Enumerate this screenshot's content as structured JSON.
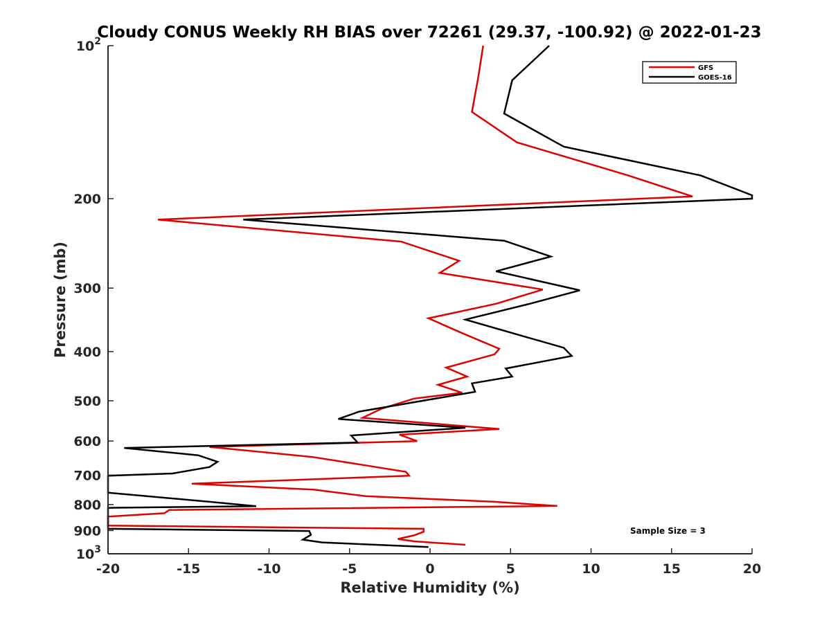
{
  "chart_data": {
    "type": "line",
    "title": "Cloudy CONUS Weekly RH BIAS over 72261 (29.37, -100.92) @ 2022-01-23",
    "xlabel": "Relative Humidity (%)",
    "ylabel": "Pressure (mb)",
    "xlim": [
      -20,
      20
    ],
    "ylim": [
      100,
      1000
    ],
    "yscale": "log",
    "y_reversed": true,
    "grid": false,
    "legend_position": "top-right",
    "xticks": [
      "-20",
      "-15",
      "-10",
      "-5",
      "0",
      "5",
      "10",
      "15",
      "20"
    ],
    "yticks": [
      {
        "label": "10",
        "exp": "2",
        "value": 100
      },
      {
        "label": "200",
        "exp": "",
        "value": 200
      },
      {
        "label": "300",
        "exp": "",
        "value": 300
      },
      {
        "label": "400",
        "exp": "",
        "value": 400
      },
      {
        "label": "500",
        "exp": "",
        "value": 500
      },
      {
        "label": "600",
        "exp": "",
        "value": 600
      },
      {
        "label": "700",
        "exp": "",
        "value": 700
      },
      {
        "label": "800",
        "exp": "",
        "value": 800
      },
      {
        "label": "900",
        "exp": "",
        "value": 900
      },
      {
        "label": "10",
        "exp": "3",
        "value": 1000
      }
    ],
    "annotation": "Sample Size = 3",
    "series": [
      {
        "name": "GFS",
        "color": "#e00000",
        "points": [
          [
            3.3,
            100
          ],
          [
            3.0,
            115
          ],
          [
            2.6,
            135
          ],
          [
            5.4,
            155
          ],
          [
            12.3,
            180
          ],
          [
            16.3,
            198
          ],
          [
            -16.9,
            220
          ],
          [
            -1.8,
            243
          ],
          [
            1.8,
            265
          ],
          [
            0.6,
            280
          ],
          [
            7.0,
            302
          ],
          [
            4.1,
            322
          ],
          [
            -0.1,
            344
          ],
          [
            2.0,
            368
          ],
          [
            4.3,
            395
          ],
          [
            4.0,
            405
          ],
          [
            1.0,
            430
          ],
          [
            2.3,
            448
          ],
          [
            0.5,
            465
          ],
          [
            2.0,
            482
          ],
          [
            -1.0,
            495
          ],
          [
            -3.0,
            518
          ],
          [
            -4.2,
            540
          ],
          [
            4.3,
            568
          ],
          [
            -1.9,
            583
          ],
          [
            -0.8,
            600
          ],
          [
            -13.7,
            616
          ],
          [
            -7.3,
            645
          ],
          [
            -4.0,
            670
          ],
          [
            -1.5,
            690
          ],
          [
            -1.3,
            702
          ],
          [
            -14.8,
            728
          ],
          [
            -7.2,
            748
          ],
          [
            -4.0,
            770
          ],
          [
            4.0,
            790
          ],
          [
            7.9,
            805
          ],
          [
            -16.2,
            820
          ],
          [
            -16.5,
            832
          ],
          [
            -20.0,
            845
          ],
          [
            -20.0,
            880
          ],
          [
            -0.4,
            893
          ],
          [
            -0.4,
            905
          ],
          [
            -1.0,
            920
          ],
          [
            -2.0,
            935
          ],
          [
            -1.0,
            945
          ],
          [
            2.2,
            960
          ]
        ]
      },
      {
        "name": "GOES-16",
        "color": "#000000",
        "points": [
          [
            7.4,
            100
          ],
          [
            5.1,
            117
          ],
          [
            4.6,
            136
          ],
          [
            8.3,
            158
          ],
          [
            16.8,
            180
          ],
          [
            20.0,
            197
          ],
          [
            20.0,
            200
          ],
          [
            -11.6,
            220
          ],
          [
            4.6,
            242
          ],
          [
            7.5,
            260
          ],
          [
            4.1,
            278
          ],
          [
            9.3,
            303
          ],
          [
            6.2,
            322
          ],
          [
            2.2,
            346
          ],
          [
            5.4,
            370
          ],
          [
            8.3,
            393
          ],
          [
            8.8,
            408
          ],
          [
            4.7,
            432
          ],
          [
            5.1,
            448
          ],
          [
            2.6,
            462
          ],
          [
            2.8,
            480
          ],
          [
            -4.4,
            525
          ],
          [
            -5.7,
            543
          ],
          [
            2.2,
            565
          ],
          [
            -4.9,
            585
          ],
          [
            -4.5,
            604
          ],
          [
            -19.0,
            619
          ],
          [
            -14.4,
            640
          ],
          [
            -13.2,
            659
          ],
          [
            -13.7,
            675
          ],
          [
            -16.0,
            695
          ],
          [
            -20.0,
            702
          ],
          [
            -20.0,
            758
          ],
          [
            -13.7,
            790
          ],
          [
            -10.8,
            806
          ],
          [
            -20.0,
            812
          ],
          [
            -20.0,
            893
          ],
          [
            -7.5,
            902
          ],
          [
            -7.4,
            918
          ],
          [
            -7.9,
            938
          ],
          [
            -6.7,
            950
          ],
          [
            -0.1,
            970
          ]
        ]
      }
    ]
  }
}
